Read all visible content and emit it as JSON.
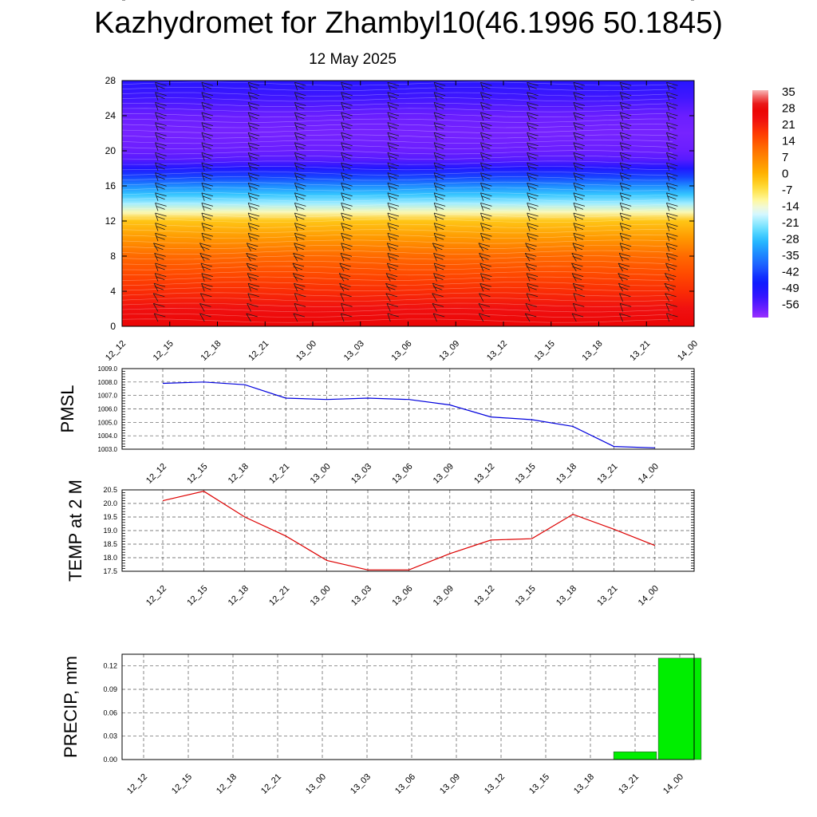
{
  "title": "Kazhydromet for Zhambyl10(46.1996 50.1845)",
  "date": "12 May 2025",
  "time_labels": [
    "12_12",
    "12_15",
    "12_18",
    "12_21",
    "13_00",
    "13_03",
    "13_06",
    "13_09",
    "13_12",
    "13_15",
    "13_18",
    "13_21",
    "14_00"
  ],
  "colors": {
    "pmsl_line": "#0000dd",
    "temp_line": "#dd0000",
    "precip_bar": "#00ee00",
    "grid": "#555555"
  },
  "chart_data": [
    {
      "type": "heatmap",
      "title": "",
      "xlabel": "",
      "ylabel": "",
      "x": [
        "12_12",
        "12_15",
        "12_18",
        "12_21",
        "13_00",
        "13_03",
        "13_06",
        "13_09",
        "13_12",
        "13_15",
        "13_18",
        "13_21",
        "14_00"
      ],
      "ylim": [
        0,
        28
      ],
      "yticks": [
        0,
        4,
        8,
        12,
        16,
        20,
        24,
        28
      ],
      "colorbar_labels": [
        "35",
        "28",
        "21",
        "14",
        "7",
        "0",
        "-7",
        "-14",
        "-21",
        "-28",
        "-35",
        "-42",
        "-49",
        "-56"
      ],
      "colorbar_range": [
        -60,
        39
      ],
      "levels_temperature": [
        {
          "y": 0,
          "value": 30
        },
        {
          "y": 2,
          "value": 26
        },
        {
          "y": 4,
          "value": 22
        },
        {
          "y": 6,
          "value": 18
        },
        {
          "y": 8,
          "value": 14
        },
        {
          "y": 10,
          "value": 7
        },
        {
          "y": 12,
          "value": 0
        },
        {
          "y": 13,
          "value": -10
        },
        {
          "y": 14,
          "value": -18
        },
        {
          "y": 15,
          "value": -25
        },
        {
          "y": 16,
          "value": -32
        },
        {
          "y": 17,
          "value": -40
        },
        {
          "y": 18,
          "value": -48
        },
        {
          "y": 19,
          "value": -54
        },
        {
          "y": 20,
          "value": -56
        },
        {
          "y": 22,
          "value": -57
        },
        {
          "y": 24,
          "value": -56
        },
        {
          "y": 26,
          "value": -52
        },
        {
          "y": 28,
          "value": -49
        }
      ],
      "wind_barbs": "shown"
    },
    {
      "type": "line",
      "ylabel": "PMSL",
      "x": [
        "12_12",
        "12_15",
        "12_18",
        "12_21",
        "13_00",
        "13_03",
        "13_06",
        "13_09",
        "13_12",
        "13_15",
        "13_18",
        "13_21",
        "14_00"
      ],
      "ylim": [
        1003.0,
        1009.0
      ],
      "yticks": [
        "1003.0",
        "1004.0",
        "1005.0",
        "1006.0",
        "1007.0",
        "1008.0",
        "1009.0"
      ],
      "grid": true,
      "series": [
        {
          "values": [
            1007.9,
            1008.0,
            1007.8,
            1006.8,
            1006.7,
            1006.8,
            1006.7,
            1006.3,
            1005.4,
            1005.2,
            1004.7,
            1003.2,
            1003.1
          ]
        }
      ]
    },
    {
      "type": "line",
      "ylabel": "TEMP at 2 M",
      "x": [
        "12_12",
        "12_15",
        "12_18",
        "12_21",
        "13_00",
        "13_03",
        "13_06",
        "13_09",
        "13_12",
        "13_15",
        "13_18",
        "13_21",
        "14_00"
      ],
      "ylim": [
        17.5,
        20.5
      ],
      "yticks": [
        "17.5",
        "18.0",
        "18.5",
        "19.0",
        "19.5",
        "20.0",
        "20.5"
      ],
      "grid": true,
      "series": [
        {
          "values": [
            20.1,
            20.45,
            19.5,
            18.8,
            17.9,
            17.55,
            17.55,
            18.15,
            18.65,
            18.7,
            19.6,
            19.05,
            18.45
          ]
        }
      ]
    },
    {
      "type": "bar",
      "ylabel": "PRECIP, mm",
      "categories": [
        "12_12",
        "12_15",
        "12_18",
        "12_21",
        "13_00",
        "13_03",
        "13_06",
        "13_09",
        "13_12",
        "13_15",
        "13_18",
        "13_21",
        "14_00"
      ],
      "ylim": [
        0,
        0.135
      ],
      "yticks": [
        "0.00",
        "0.03",
        "0.06",
        "0.09",
        "0.12"
      ],
      "grid": true,
      "values": [
        0,
        0,
        0,
        0,
        0,
        0,
        0,
        0,
        0,
        0,
        0,
        0.01,
        0.13
      ]
    }
  ]
}
